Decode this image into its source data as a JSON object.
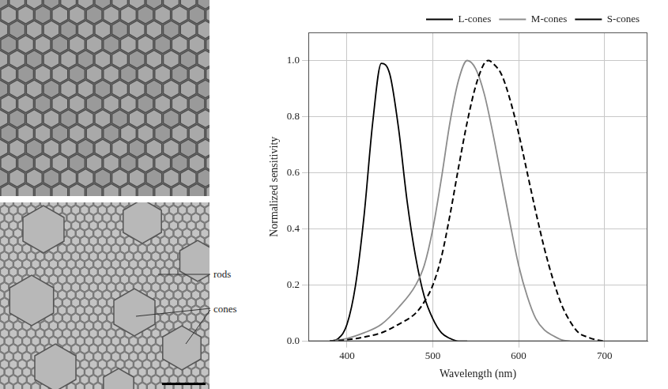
{
  "chart_data": {
    "type": "line",
    "x_label": "Wavelength (nm)",
    "y_label": "Normalized sensitivity",
    "xlim": [
      355,
      750
    ],
    "xticks": [
      400,
      500,
      600,
      700
    ],
    "ylim": [
      0,
      1.1
    ],
    "yticks": [
      {
        "value": 0,
        "label": "0.0"
      },
      {
        "value": 0.2,
        "label": "0.2"
      },
      {
        "value": 0.4,
        "label": "0.4"
      },
      {
        "value": 0.6,
        "label": "0.6"
      },
      {
        "value": 0.8,
        "label": "0.8"
      },
      {
        "value": 1,
        "label": "1.0"
      }
    ],
    "grid": true,
    "legend": "top right",
    "series": [
      {
        "name": "L-cones",
        "color": "#000000",
        "line_style": "dashed",
        "x": [
          380,
          400,
          420,
          440,
          460,
          480,
          490,
          500,
          510,
          520,
          530,
          540,
          550,
          560,
          565,
          570,
          580,
          590,
          600,
          610,
          620,
          630,
          640,
          650,
          660,
          670,
          680,
          690,
          700
        ],
        "values": [
          0,
          0.005,
          0.015,
          0.03,
          0.06,
          0.1,
          0.14,
          0.2,
          0.3,
          0.45,
          0.62,
          0.78,
          0.91,
          0.99,
          1.0,
          0.99,
          0.95,
          0.86,
          0.74,
          0.6,
          0.46,
          0.33,
          0.22,
          0.13,
          0.07,
          0.03,
          0.015,
          0.005,
          0
        ]
      },
      {
        "name": "M-cones",
        "color": "#8c8c8c",
        "line_style": "solid",
        "x": [
          380,
          400,
          420,
          440,
          460,
          480,
          490,
          500,
          510,
          520,
          530,
          540,
          550,
          560,
          570,
          580,
          590,
          600,
          610,
          620,
          630,
          640,
          650,
          660
        ],
        "values": [
          0,
          0.01,
          0.03,
          0.06,
          0.12,
          0.2,
          0.27,
          0.4,
          0.58,
          0.78,
          0.93,
          1.0,
          0.97,
          0.88,
          0.74,
          0.58,
          0.42,
          0.27,
          0.16,
          0.08,
          0.04,
          0.02,
          0.005,
          0
        ]
      },
      {
        "name": "S-cones",
        "color": "#000000",
        "line_style": "solid",
        "x": [
          380,
          390,
          400,
          410,
          420,
          430,
          440,
          450,
          460,
          470,
          480,
          490,
          500,
          510,
          520,
          530,
          540
        ],
        "values": [
          0,
          0.01,
          0.06,
          0.2,
          0.45,
          0.78,
          0.99,
          0.95,
          0.76,
          0.5,
          0.3,
          0.16,
          0.08,
          0.03,
          0.01,
          0,
          0
        ]
      }
    ]
  },
  "micrographs": {
    "labels": [
      "rods",
      "cones"
    ]
  }
}
